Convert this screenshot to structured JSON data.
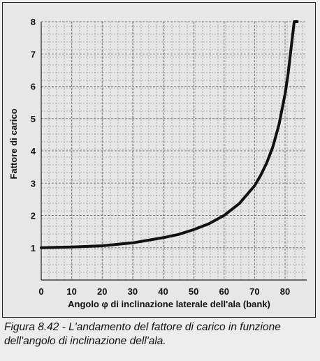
{
  "chart_data": {
    "type": "line",
    "xlabel": "Angolo φ di inclinazione laterale dell'ala (bank)",
    "ylabel": "Fattore di carico",
    "xlim": [
      0,
      84
    ],
    "ylim": [
      0,
      8
    ],
    "xticks": [
      "0",
      "10",
      "20",
      "30",
      "40",
      "50",
      "60",
      "70",
      "80"
    ],
    "yticks": [
      "1",
      "2",
      "3",
      "4",
      "5",
      "6",
      "7",
      "8"
    ],
    "grid": true,
    "series": [
      {
        "x": [
          0,
          10,
          20,
          30,
          40,
          45,
          50,
          55,
          60,
          65,
          70,
          72,
          74,
          76,
          78,
          80,
          81,
          82,
          83,
          84
        ],
        "y": [
          1.0,
          1.02,
          1.06,
          1.15,
          1.31,
          1.41,
          1.56,
          1.74,
          2.0,
          2.37,
          2.92,
          3.24,
          3.63,
          4.13,
          4.81,
          5.76,
          6.39,
          7.19,
          8.0,
          8.0
        ]
      }
    ]
  },
  "caption": {
    "line1": "Figura 8.42 - L'andamento del fattore di carico in funzione",
    "line2": "dell'angolo di inclinazione dell'ala."
  }
}
